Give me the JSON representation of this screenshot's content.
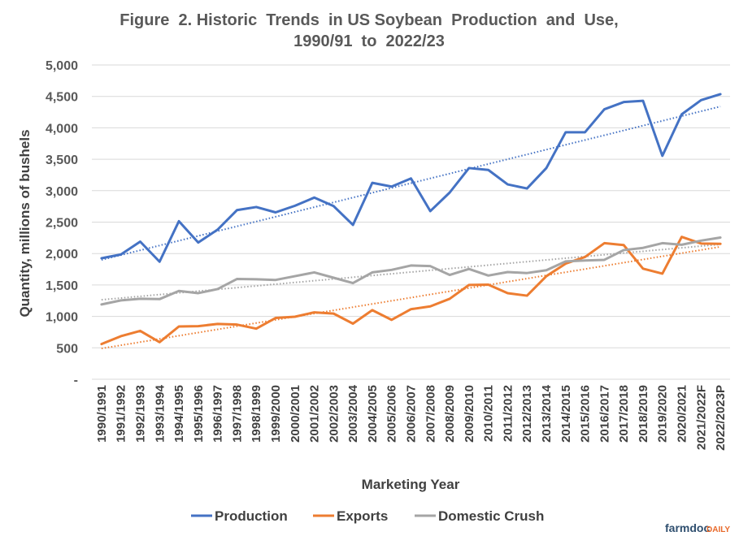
{
  "chart_data": {
    "type": "line",
    "title_lines": [
      "Figure  2. Historic  Trends  in US Soybean  Production  and  Use,",
      "1990/91  to  2022/23"
    ],
    "xlabel": "Marketing Year",
    "ylabel": "Quantity, millions of bushels",
    "ylim": [
      0,
      5000
    ],
    "ytick_labels": [
      "-",
      "500",
      "1,000",
      "1,500",
      "2,000",
      "2,500",
      "3,000",
      "3,500",
      "4,000",
      "4,500",
      "5,000"
    ],
    "grid": true,
    "legend_position": "bottom",
    "categories": [
      "1990/1991",
      "1991/1992",
      "1992/1993",
      "1993/1994",
      "1994/1995",
      "1995/1996",
      "1996/1997",
      "1997/1998",
      "1998/1999",
      "1999/2000",
      "2000/2001",
      "2001/2002",
      "2002/2003",
      "2003/2004",
      "2004/2005",
      "2005/2006",
      "2006/2007",
      "2007/2008",
      "2008/2009",
      "2009/2010",
      "2010/2011",
      "2011/2012",
      "2012/2013",
      "2013/2014",
      "2014/2015",
      "2015/2016",
      "2016/2017",
      "2017/2018",
      "2018/2019",
      "2019/2020",
      "2020/2021",
      "2021/2022F",
      "2022/2023P"
    ],
    "series": [
      {
        "name": "Production",
        "color": "#4472c4",
        "trendline": "linear",
        "values": [
          1925,
          1985,
          2190,
          1870,
          2515,
          2175,
          2380,
          2690,
          2740,
          2655,
          2760,
          2890,
          2755,
          2455,
          3125,
          3065,
          3195,
          2675,
          2970,
          3360,
          3330,
          3100,
          3035,
          3360,
          3930,
          3930,
          4295,
          4410,
          4430,
          3555,
          4215,
          4440,
          4535
        ]
      },
      {
        "name": "Exports",
        "color": "#ed7d31",
        "trendline": "linear",
        "values": [
          560,
          685,
          770,
          590,
          840,
          845,
          880,
          870,
          805,
          975,
          995,
          1065,
          1045,
          885,
          1100,
          945,
          1115,
          1160,
          1280,
          1500,
          1505,
          1370,
          1330,
          1640,
          1840,
          1945,
          2165,
          2135,
          1760,
          1680,
          2265,
          2160,
          2155
        ]
      },
      {
        "name": "Domestic Crush",
        "color": "#a5a5a5",
        "trendline": "linear",
        "values": [
          1190,
          1255,
          1280,
          1275,
          1405,
          1370,
          1435,
          1595,
          1590,
          1580,
          1640,
          1700,
          1615,
          1530,
          1700,
          1740,
          1810,
          1800,
          1660,
          1755,
          1650,
          1705,
          1690,
          1735,
          1875,
          1890,
          1900,
          2055,
          2090,
          2165,
          2140,
          2205,
          2255
        ]
      }
    ]
  },
  "brand": {
    "part1": "farmdoc",
    "part2": "DAILY"
  }
}
